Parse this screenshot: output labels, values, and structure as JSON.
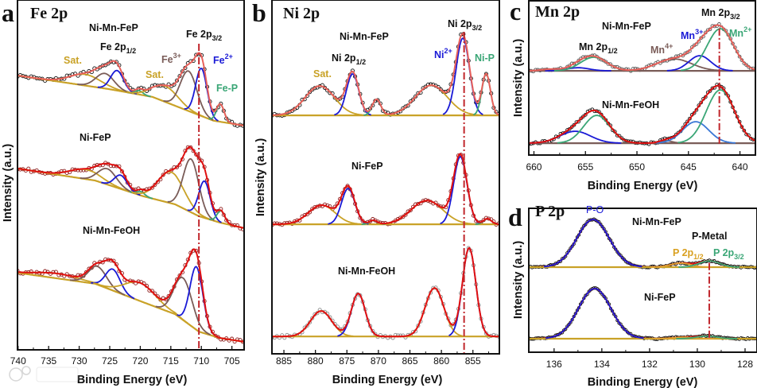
{
  "watermark": "大数跨境",
  "colors": {
    "sat": "#c9a227",
    "brown": "#7a5c58",
    "blue": "#1a1ad6",
    "green": "#3aa676",
    "fit_light": "#e8605a",
    "fit": "#e01010",
    "ref": "#c0262c",
    "raw_black": "#111111",
    "raw_red": "#8b1c1c",
    "raw_gray": "#8a8a8a"
  },
  "chart_data": [
    {
      "panel_letter": "a",
      "type": "line",
      "title": "Fe 2p",
      "xlabel": "Binding Energy (eV)",
      "ylabel": "Intensity (a.u.)",
      "xlim": [
        740.1,
        703.0
      ],
      "ylim": [
        0,
        100
      ],
      "xticks": [
        740,
        735,
        730,
        725,
        720,
        715,
        710,
        705
      ],
      "reference_line_eV": 710.4,
      "reference_line_I": [
        87.5,
        0
      ],
      "annotations": [
        {
          "main": "Ni-Mn-FeP"
        },
        {
          "main": "Fe 2p",
          "sub": "1/2"
        },
        {
          "main": "Fe 2p",
          "sub": "3/2"
        },
        {
          "main": "Sat."
        },
        {
          "main": "Fe",
          "sup": "3+"
        },
        {
          "main": "Fe",
          "sup": "2+"
        },
        {
          "main": "Sat."
        },
        {
          "main": "Fe-P"
        },
        {
          "main": "Ni-FeP"
        },
        {
          "main": "Ni-Mn-FeOH"
        }
      ],
      "spectra": [
        {
          "name": "Ni-Mn-FeP",
          "raw_color": "#111111",
          "fit_color": "#e8605a",
          "bg_color": "#c9a227",
          "background": [
            [
              740,
              78.4
            ],
            [
              725,
              74.5
            ],
            [
              718,
              72.3
            ],
            [
              712,
              68.2
            ],
            [
              708,
              65.5
            ],
            [
              703,
              64.1
            ]
          ],
          "components": [
            {
              "center": 729.0,
              "height": 3.2,
              "fwhm": 6,
              "color": "#c9a227"
            },
            {
              "center": 725.8,
              "height": 4.3,
              "fwhm": 3.5,
              "color": "#7a5c58"
            },
            {
              "center": 723.8,
              "height": 5.7,
              "fwhm": 2.5,
              "color": "#1a1ad6"
            },
            {
              "center": 720.2,
              "height": 1.1,
              "fwhm": 1.5,
              "color": "#3aa676"
            },
            {
              "center": 715.9,
              "height": 4.5,
              "fwhm": 5,
              "color": "#c9a227"
            },
            {
              "center": 712.1,
              "height": 11.4,
              "fwhm": 3.2,
              "color": "#7a5c58"
            },
            {
              "center": 710.0,
              "height": 13.6,
              "fwhm": 2.2,
              "color": "#1a1ad6"
            },
            {
              "center": 706.9,
              "height": 5.0,
              "fwhm": 1.5,
              "color": "#3aa676"
            }
          ]
        },
        {
          "name": "Ni-FeP",
          "raw_color": "#8b1c1c",
          "fit_color": "#e01010",
          "bg_color": "#c9a227",
          "background": [
            [
              740,
              51.8
            ],
            [
              727.4,
              48.4
            ],
            [
              719.5,
              43.9
            ],
            [
              714.3,
              41.6
            ],
            [
              710.4,
              38.2
            ],
            [
              707,
              36.4
            ],
            [
              703,
              34.8
            ]
          ],
          "components": [
            {
              "center": 729.0,
              "height": 2.7,
              "fwhm": 6,
              "color": "#c9a227"
            },
            {
              "center": 725.4,
              "height": 4.5,
              "fwhm": 3.5,
              "color": "#7a5c58"
            },
            {
              "center": 723.2,
              "height": 3.9,
              "fwhm": 2.5,
              "color": "#1a1ad6"
            },
            {
              "center": 719.9,
              "height": 1.1,
              "fwhm": 1.5,
              "color": "#3aa676"
            },
            {
              "center": 715.0,
              "height": 8.9,
              "fwhm": 5,
              "color": "#c9a227"
            },
            {
              "center": 711.7,
              "height": 15.2,
              "fwhm": 3,
              "color": "#7a5c58"
            },
            {
              "center": 709.5,
              "height": 10.5,
              "fwhm": 2.2,
              "color": "#1a1ad6"
            },
            {
              "center": 706.8,
              "height": 3.4,
              "fwhm": 1.5,
              "color": "#3aa676"
            }
          ]
        },
        {
          "name": "Ni-Mn-FeOH",
          "raw_color": "#8b1c1c",
          "fit_color": "#e01010",
          "bg_color": "#c9a227",
          "background": [
            [
              740,
              22
            ],
            [
              727.4,
              18.9
            ],
            [
              719.5,
              13.6
            ],
            [
              714.3,
              10.2
            ],
            [
              710.4,
              5.2
            ],
            [
              707,
              3.4
            ],
            [
              703,
              2.3
            ]
          ],
          "components": [
            {
              "center": 733.5,
              "height": 1.4,
              "fwhm": 8,
              "color": "#c9a227"
            },
            {
              "center": 727.0,
              "height": 5.2,
              "fwhm": 3.5,
              "color": "#7a5c58"
            },
            {
              "center": 724.5,
              "height": 6.1,
              "fwhm": 2.8,
              "color": "#1a1ad6"
            },
            {
              "center": 720.0,
              "height": 5.2,
              "fwhm": 6,
              "color": "#c9a227"
            },
            {
              "center": 713.0,
              "height": 12.0,
              "fwhm": 3.5,
              "color": "#7a5c58"
            },
            {
              "center": 710.8,
              "height": 18.0,
              "fwhm": 2.5,
              "color": "#1a1ad6"
            }
          ]
        }
      ]
    },
    {
      "panel_letter": "b",
      "type": "line",
      "title": "Ni 2p",
      "xlabel": "Binding Energy (eV)",
      "ylabel": "Intensity (a.u.)",
      "xlim": [
        886.9,
        850.8
      ],
      "ylim": [
        0,
        100
      ],
      "xticks": [
        885,
        880,
        875,
        870,
        865,
        860,
        855
      ],
      "reference_line_eV": 856.4,
      "reference_line_I": [
        91,
        0
      ],
      "annotations": [
        {
          "main": "Ni-Mn-FeP"
        },
        {
          "main": "Ni 2p",
          "sub": "1/2"
        },
        {
          "main": "Sat."
        },
        {
          "main": "Ni 2p",
          "sub": "3/2"
        },
        {
          "main": "Ni",
          "sup": "2+"
        },
        {
          "main": "Ni-P"
        },
        {
          "main": "Ni-FeP"
        },
        {
          "main": "Ni-Mn-FeOH"
        }
      ],
      "spectra": [
        {
          "name": "Ni-Mn-FeP",
          "raw_color": "#111111",
          "fit_color": "#e8605a",
          "bg_color": "#c9a227",
          "background": [
            [
              887,
              67.4
            ],
            [
              850,
              67.4
            ]
          ],
          "components": [
            {
              "center": 879.3,
              "height": 8.3,
              "fwhm": 5.5,
              "color": "#c9a227"
            },
            {
              "center": 874.1,
              "height": 11.7,
              "fwhm": 2.3,
              "color": "#1a1ad6"
            },
            {
              "center": 870.3,
              "height": 4.5,
              "fwhm": 1.6,
              "color": "#3aa676"
            },
            {
              "center": 861.6,
              "height": 8.5,
              "fwhm": 6,
              "color": "#c9a227"
            },
            {
              "center": 856.6,
              "height": 21.8,
              "fwhm": 2.5,
              "color": "#1a1ad6"
            },
            {
              "center": 852.9,
              "height": 11.7,
              "fwhm": 1.6,
              "color": "#3aa676"
            }
          ]
        },
        {
          "name": "Ni-FeP",
          "raw_color": "#8b1c1c",
          "fit_color": "#e01010",
          "bg_color": "#c9a227",
          "background": [
            [
              887,
              36.6
            ],
            [
              850,
              36.6
            ]
          ],
          "components": [
            {
              "center": 879.0,
              "height": 5.4,
              "fwhm": 5,
              "color": "#c9a227"
            },
            {
              "center": 874.8,
              "height": 10.1,
              "fwhm": 2.5,
              "color": "#1a1ad6"
            },
            {
              "center": 870.8,
              "height": 1.1,
              "fwhm": 1.5,
              "color": "#3aa676"
            },
            {
              "center": 862.3,
              "height": 6.7,
              "fwhm": 6,
              "color": "#c9a227"
            },
            {
              "center": 857.0,
              "height": 19.1,
              "fwhm": 2.5,
              "color": "#1a1ad6"
            },
            {
              "center": 852.7,
              "height": 1.6,
              "fwhm": 1.5,
              "color": "#3aa676"
            }
          ]
        },
        {
          "name": "Ni-Mn-FeOH",
          "raw_color": "#8a8a8a",
          "fit_color": "#e01010",
          "bg_color": "#c9a227",
          "background": [
            [
              887,
              4.9
            ],
            [
              850,
              4.9
            ]
          ],
          "components": [
            {
              "center": 879.1,
              "height": 7.2,
              "fwhm": 4,
              "color": "#c9a227"
            },
            {
              "center": 873.2,
              "height": 12.1,
              "fwhm": 2.6,
              "color": "#1a1ad6"
            },
            {
              "center": 861.1,
              "height": 13.7,
              "fwhm": 3.5,
              "color": "#c9a227"
            },
            {
              "center": 855.6,
              "height": 25.0,
              "fwhm": 2.5,
              "color": "#1a1ad6"
            }
          ]
        }
      ]
    },
    {
      "panel_letter": "c",
      "type": "line",
      "title": "Mn 2p",
      "xlabel": "Binding Energy (eV)",
      "ylabel": "Intensity (a.u.)",
      "xlim": [
        660.5,
        638.5
      ],
      "ylim": [
        0,
        100
      ],
      "xticks": [
        660,
        655,
        650,
        645,
        640
      ],
      "reference_line_eV": 642.0,
      "reference_line_I": [
        82,
        6.7
      ],
      "annotations": [
        {
          "main": "Ni-Mn-FeP"
        },
        {
          "main": "Mn 2p",
          "sub": "1/2"
        },
        {
          "main": "Mn",
          "sup": "4+"
        },
        {
          "main": "Mn",
          "sup": "3+"
        },
        {
          "main": "Mn 2p",
          "sub": "3/2"
        },
        {
          "main": "Mn",
          "sup": "2+"
        },
        {
          "main": "Ni-Mn-FeOH"
        }
      ],
      "spectra": [
        {
          "name": "Ni-Mn-FeP",
          "raw_color": "#555555",
          "fit_color": "#e8605a",
          "bg_color": "#7a5c58",
          "background": [
            [
              661,
              54.6
            ],
            [
              638,
              54.6
            ]
          ],
          "components": [
            {
              "center": 658.5,
              "height": 1.0,
              "fwhm": 2,
              "color": "#7a5c58"
            },
            {
              "center": 655.7,
              "height": 2.0,
              "fwhm": 2.5,
              "color": "#1a1ad6"
            },
            {
              "center": 654.2,
              "height": 8.8,
              "fwhm": 3,
              "color": "#3aa676"
            },
            {
              "center": 646.4,
              "height": 7.7,
              "fwhm": 4,
              "color": "#7a5c58"
            },
            {
              "center": 643.9,
              "height": 9.8,
              "fwhm": 2.5,
              "color": "#1a1ad6"
            },
            {
              "center": 641.9,
              "height": 27.3,
              "fwhm": 3,
              "color": "#3aa676"
            }
          ]
        },
        {
          "name": "Ni-Mn-FeOH",
          "raw_color": "#111111",
          "fit_color": "#e01010",
          "bg_color": "#7a5c58",
          "background": [
            [
              661,
              7.7
            ],
            [
              638,
              7.7
            ]
          ],
          "components": [
            {
              "center": 656.0,
              "height": 7.7,
              "fwhm": 3.5,
              "color": "#1a1ad6"
            },
            {
              "center": 653.9,
              "height": 18.0,
              "fwhm": 3,
              "color": "#3aa676"
            },
            {
              "center": 647.2,
              "height": 1.5,
              "fwhm": 1.5,
              "color": "#7a5c58"
            },
            {
              "center": 644.3,
              "height": 13.9,
              "fwhm": 3,
              "color": "#3a78d6"
            },
            {
              "center": 641.9,
              "height": 34.5,
              "fwhm": 3.2,
              "color": "#3aa676"
            }
          ]
        }
      ]
    },
    {
      "panel_letter": "d",
      "type": "line",
      "title": "P 2p",
      "xlabel": "Binding Energy (eV)",
      "ylabel": "Intensity (a.u.)",
      "xlim": [
        137.06,
        127.5
      ],
      "ylim": [
        0,
        100
      ],
      "xticks": [
        136,
        134,
        132,
        130,
        128
      ],
      "reference_line_eV": 129.5,
      "reference_line_I": [
        62,
        9
      ],
      "annotations": [
        {
          "main": "P-O"
        },
        {
          "main": "Ni-Mn-FeP"
        },
        {
          "main": "P-Metal"
        },
        {
          "main": "P 2p",
          "sub": "1/2"
        },
        {
          "main": "P 2p",
          "sub": "3/2"
        },
        {
          "main": "Ni-FeP"
        }
      ],
      "spectra": [
        {
          "name": "Ni-Mn-FeP",
          "raw_color": "#111111",
          "fit_color": "#e01010",
          "bg_color": "#c9a227",
          "background": [
            [
              138,
              59.1
            ],
            [
              127,
              59.1
            ]
          ],
          "components": [
            {
              "center": 134.37,
              "height": 33.1,
              "fwhm": 1.6,
              "color": "#1a1ad6"
            },
            {
              "center": 130.7,
              "height": 2.8,
              "fwhm": 1.0,
              "color": "#e0a030"
            },
            {
              "center": 129.5,
              "height": 4.4,
              "fwhm": 1.0,
              "color": "#3aa676"
            }
          ]
        },
        {
          "name": "Ni-FeP",
          "raw_color": "#111111",
          "fit_color": "#e01010",
          "bg_color": "#c9a227",
          "background": [
            [
              138,
              9.4
            ],
            [
              127,
              9.4
            ]
          ],
          "components": [
            {
              "center": 134.3,
              "height": 34.8,
              "fwhm": 1.6,
              "color": "#1a1ad6"
            },
            {
              "center": 130.6,
              "height": 1.0,
              "fwhm": 1.0,
              "color": "#e0a030"
            },
            {
              "center": 129.6,
              "height": 1.9,
              "fwhm": 1.0,
              "color": "#3aa676"
            }
          ]
        }
      ]
    }
  ]
}
